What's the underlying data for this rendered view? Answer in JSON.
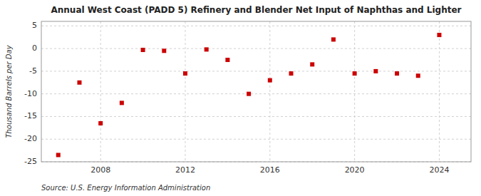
{
  "chart_data": {
    "type": "scatter",
    "title": "Annual West Coast (PADD 5) Refinery and Blender Net Input of Naphthas and Lighter",
    "ylabel": "Thousand Barrels per Day",
    "annotations": [
      "Source: U.S. Energy Information Administration"
    ],
    "x": [
      2006,
      2007,
      2008,
      2009,
      2010,
      2011,
      2012,
      2013,
      2014,
      2015,
      2016,
      2017,
      2018,
      2019,
      2020,
      2021,
      2022,
      2023,
      2024
    ],
    "values": [
      -23.5,
      -7.5,
      -16.5,
      -12.0,
      -0.3,
      -0.5,
      -5.5,
      -0.2,
      -2.5,
      -10.0,
      -7.0,
      -5.5,
      -3.5,
      2.0,
      -5.5,
      -5.0,
      -5.5,
      -6.0,
      3.0
    ],
    "color": "#cc0000",
    "marker": "square",
    "xlim": [
      2005.2,
      2025.5
    ],
    "ylim": [
      -25,
      6
    ],
    "xticks": [
      2008,
      2012,
      2016,
      2020,
      2024
    ],
    "yticks": [
      5,
      0,
      -5,
      -10,
      -15,
      -20,
      -25
    ],
    "grid": true
  }
}
